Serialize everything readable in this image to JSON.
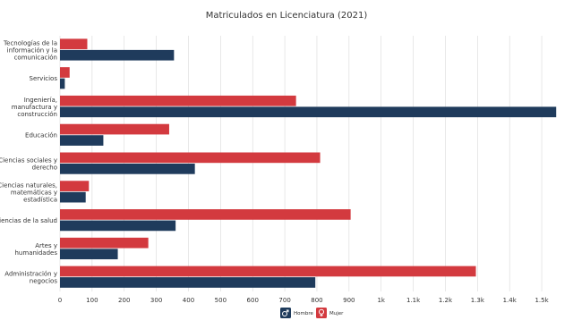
{
  "chart_data": {
    "type": "bar",
    "orientation": "horizontal",
    "title": "Matriculados en Licenciatura (2021)",
    "categories": [
      "Tecnologías de la información y la comunicación",
      "Servicios",
      "Ingeniería, manufactura y construcción",
      "Educación",
      "Ciencias sociales y derecho",
      "Ciencias naturales, matemáticas y estadística",
      "Ciencias de la salud",
      "Artes y humanidades",
      "Administración y negocios"
    ],
    "category_lines": [
      [
        "Tecnologías de la",
        "información y la",
        "comunicación"
      ],
      [
        "Servicios"
      ],
      [
        "Ingeniería,",
        "manufactura y",
        "construcción"
      ],
      [
        "Educación"
      ],
      [
        "Ciencias sociales y",
        "derecho"
      ],
      [
        "Ciencias naturales,",
        "matemáticas y",
        "estadística"
      ],
      [
        "Ciencias de la salud"
      ],
      [
        "Artes y",
        "humanidades"
      ],
      [
        "Administración y",
        "negocios"
      ]
    ],
    "series": [
      {
        "name": "Mujer",
        "color": "#d33a3f",
        "values": [
          85,
          30,
          735,
          340,
          810,
          90,
          905,
          275,
          1295
        ]
      },
      {
        "name": "Hombre",
        "color": "#1f3b5c",
        "values": [
          355,
          15,
          1545,
          135,
          420,
          80,
          360,
          180,
          795
        ]
      }
    ],
    "xlim": [
      0,
      1550
    ],
    "xticks": [
      0,
      100,
      200,
      300,
      400,
      500,
      600,
      700,
      800,
      900,
      1000,
      1100,
      1200,
      1300,
      1400,
      1500
    ],
    "xtick_labels": [
      "0",
      "100",
      "200",
      "300",
      "400",
      "500",
      "600",
      "700",
      "800",
      "900",
      "1k",
      "1.1k",
      "1.2k",
      "1.3k",
      "1.4k",
      "1.5k"
    ],
    "grid": true,
    "legend": {
      "position": "bottom",
      "order": [
        "Hombre",
        "Mujer"
      ],
      "icons": {
        "Hombre": "male-symbol-icon",
        "Mujer": "female-symbol-icon"
      }
    }
  }
}
